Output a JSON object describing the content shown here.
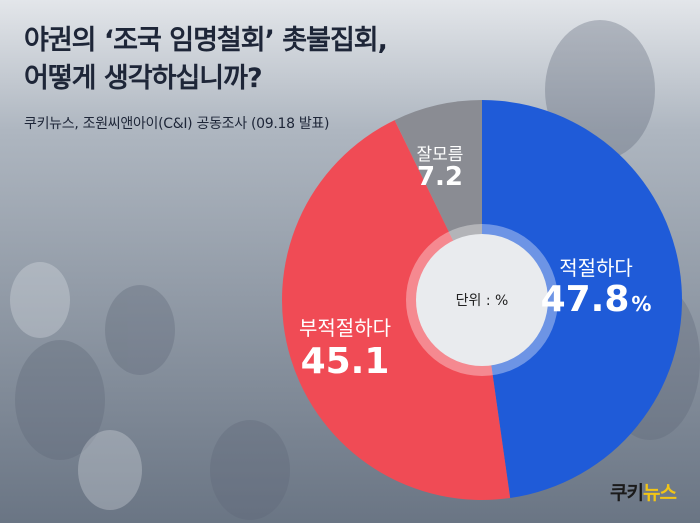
{
  "title_lines": [
    "야권의 ‘조국 임명철회’ 촛불집회,",
    "어떻게 생각하십니까?"
  ],
  "source": "쿠키뉴스, 조원씨앤아이(C&I) 공동조사 (09.18 발표)",
  "logo": {
    "part1": "쿠키",
    "part2": "뉴스"
  },
  "colors": {
    "background": "#6f7a88",
    "title": "#1e2638",
    "center": "#e9ebee"
  },
  "chart_data": {
    "type": "pie",
    "donut": true,
    "center_label": "단위 : %",
    "slices": [
      {
        "label": "적절하다",
        "value": 47.8,
        "display": "47.8",
        "unit": "%",
        "color": "#1f5bd8"
      },
      {
        "label": "부적절하다",
        "value": 45.1,
        "display": "45.1",
        "unit": "",
        "color": "#f04b55"
      },
      {
        "label": "잘모름",
        "value": 7.2,
        "display": "7.2",
        "unit": "",
        "color": "#8a8c93"
      }
    ]
  }
}
